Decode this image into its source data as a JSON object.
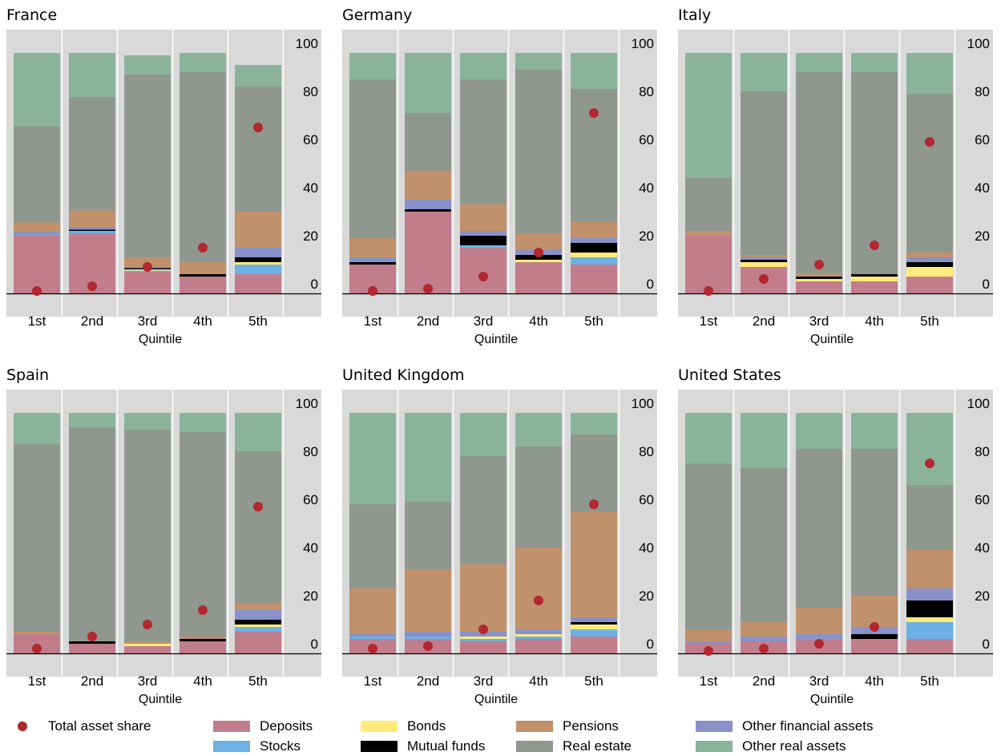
{
  "colors": {
    "deposits": "#c27d8c",
    "stocks": "#6cb0e4",
    "bonds": "#ffeb7a",
    "mutual": "#000000",
    "other_fin": "#8892c8",
    "pensions": "#c0916b",
    "real_estate": "#8f978f",
    "other_real": "#8bb39b",
    "dot": "#b2282e",
    "panel_bg": "#d9d9d9"
  },
  "legend": {
    "total": "Total asset share",
    "deposits": "Deposits",
    "stocks": "Stocks",
    "bonds": "Bonds",
    "mutual": "Mutual funds",
    "pensions": "Pensions",
    "real_estate": "Real estate",
    "other_fin": "Other financial assets",
    "other_real": "Other real assets"
  },
  "chart_data": [
    {
      "type": "bar",
      "title": "France",
      "xlabel": "Quintile",
      "categories": [
        "1st",
        "2nd",
        "3rd",
        "4th",
        "5th"
      ],
      "ylim": [
        0,
        100
      ],
      "yticks": [
        0,
        20,
        40,
        60,
        80,
        100
      ],
      "series": [
        {
          "name": "Deposits",
          "key": "deposits",
          "values": [
            24,
            25,
            9,
            7,
            8
          ]
        },
        {
          "name": "Stocks",
          "key": "stocks",
          "values": [
            0.5,
            1,
            0.5,
            0,
            4
          ]
        },
        {
          "name": "Bonds",
          "key": "bonds",
          "values": [
            0,
            0,
            0.5,
            0,
            1
          ]
        },
        {
          "name": "Mutual funds",
          "key": "mutual",
          "values": [
            0,
            0.5,
            0.5,
            1,
            2
          ]
        },
        {
          "name": "Other financial assets",
          "key": "other_fin",
          "values": [
            1,
            1,
            0.5,
            0,
            4
          ]
        },
        {
          "name": "Pensions",
          "key": "pensions",
          "values": [
            4,
            7,
            4,
            5,
            15
          ]
        },
        {
          "name": "Real estate",
          "key": "real_estate",
          "values": [
            40,
            47,
            76,
            79,
            52
          ]
        },
        {
          "name": "Other real assets",
          "key": "other_real",
          "values": [
            30.5,
            18.5,
            8,
            8,
            9
          ]
        }
      ],
      "total_asset_share": [
        1,
        3,
        11,
        19,
        69
      ]
    },
    {
      "type": "bar",
      "title": "Germany",
      "xlabel": "Quintile",
      "categories": [
        "1st",
        "2nd",
        "3rd",
        "4th",
        "5th"
      ],
      "ylim": [
        0,
        100
      ],
      "yticks": [
        0,
        20,
        40,
        60,
        80,
        100
      ],
      "series": [
        {
          "name": "Deposits",
          "key": "deposits",
          "values": [
            12,
            34,
            19,
            13,
            12
          ]
        },
        {
          "name": "Stocks",
          "key": "stocks",
          "values": [
            0,
            0,
            1,
            0,
            3
          ]
        },
        {
          "name": "Bonds",
          "key": "bonds",
          "values": [
            0,
            0,
            0,
            1,
            2
          ]
        },
        {
          "name": "Mutual funds",
          "key": "mutual",
          "values": [
            1,
            1,
            4,
            2,
            4
          ]
        },
        {
          "name": "Other financial assets",
          "key": "other_fin",
          "values": [
            2,
            4,
            2,
            2,
            2
          ]
        },
        {
          "name": "Pensions",
          "key": "pensions",
          "values": [
            8,
            12,
            11,
            7,
            7
          ]
        },
        {
          "name": "Real estate",
          "key": "real_estate",
          "values": [
            66,
            24,
            52,
            68,
            55
          ]
        },
        {
          "name": "Other real assets",
          "key": "other_real",
          "values": [
            11,
            25,
            11,
            7,
            15
          ]
        }
      ],
      "total_asset_share": [
        1,
        2,
        7,
        17,
        75
      ]
    },
    {
      "type": "bar",
      "title": "Italy",
      "xlabel": "Quintile",
      "categories": [
        "1st",
        "2nd",
        "3rd",
        "4th",
        "5th"
      ],
      "ylim": [
        0,
        100
      ],
      "yticks": [
        0,
        20,
        40,
        60,
        80,
        100
      ],
      "series": [
        {
          "name": "Deposits",
          "key": "deposits",
          "values": [
            24,
            11,
            5,
            5,
            7
          ]
        },
        {
          "name": "Stocks",
          "key": "stocks",
          "values": [
            0,
            0,
            0,
            0,
            0
          ]
        },
        {
          "name": "Bonds",
          "key": "bonds",
          "values": [
            0,
            2,
            1,
            2,
            4
          ]
        },
        {
          "name": "Mutual funds",
          "key": "mutual",
          "values": [
            0,
            1,
            1,
            1,
            2
          ]
        },
        {
          "name": "Other financial assets",
          "key": "other_fin",
          "values": [
            0,
            1,
            0,
            0,
            2
          ]
        },
        {
          "name": "Pensions",
          "key": "pensions",
          "values": [
            2,
            1,
            1,
            0,
            2
          ]
        },
        {
          "name": "Real estate",
          "key": "real_estate",
          "values": [
            22,
            68,
            84,
            84,
            66
          ]
        },
        {
          "name": "Other real assets",
          "key": "other_real",
          "values": [
            52,
            16,
            8,
            8,
            17
          ]
        }
      ],
      "total_asset_share": [
        1,
        6,
        12,
        20,
        63
      ]
    },
    {
      "type": "bar",
      "title": "Spain",
      "xlabel": "Quintile",
      "categories": [
        "1st",
        "2nd",
        "3rd",
        "4th",
        "5th"
      ],
      "ylim": [
        0,
        100
      ],
      "yticks": [
        0,
        20,
        40,
        60,
        80,
        100
      ],
      "series": [
        {
          "name": "Deposits",
          "key": "deposits",
          "values": [
            8,
            4,
            3,
            5,
            9
          ]
        },
        {
          "name": "Stocks",
          "key": "stocks",
          "values": [
            0,
            0,
            0,
            0,
            2
          ]
        },
        {
          "name": "Bonds",
          "key": "bonds",
          "values": [
            0,
            0,
            1,
            0,
            1
          ]
        },
        {
          "name": "Mutual funds",
          "key": "mutual",
          "values": [
            0,
            1,
            0,
            1,
            2
          ]
        },
        {
          "name": "Other financial assets",
          "key": "other_fin",
          "values": [
            0,
            0,
            0,
            0,
            4
          ]
        },
        {
          "name": "Pensions",
          "key": "pensions",
          "values": [
            1,
            0,
            1,
            1,
            3
          ]
        },
        {
          "name": "Real estate",
          "key": "real_estate",
          "values": [
            78,
            89,
            88,
            85,
            63
          ]
        },
        {
          "name": "Other real assets",
          "key": "other_real",
          "values": [
            13,
            6,
            7,
            8,
            16
          ]
        }
      ],
      "total_asset_share": [
        2,
        7,
        12,
        18,
        61
      ]
    },
    {
      "type": "bar",
      "title": "United Kingdom",
      "xlabel": "Quintile",
      "categories": [
        "1st",
        "2nd",
        "3rd",
        "4th",
        "5th"
      ],
      "ylim": [
        0,
        100
      ],
      "yticks": [
        0,
        20,
        40,
        60,
        80,
        100
      ],
      "series": [
        {
          "name": "Deposits",
          "key": "deposits",
          "values": [
            6,
            6,
            5,
            6,
            7
          ]
        },
        {
          "name": "Stocks",
          "key": "stocks",
          "values": [
            1,
            1,
            1,
            1,
            3
          ]
        },
        {
          "name": "Bonds",
          "key": "bonds",
          "values": [
            0,
            0,
            1,
            1,
            2
          ]
        },
        {
          "name": "Mutual funds",
          "key": "mutual",
          "values": [
            0,
            0,
            0,
            0,
            1
          ]
        },
        {
          "name": "Other financial assets",
          "key": "other_fin",
          "values": [
            1,
            2,
            2,
            2,
            2
          ]
        },
        {
          "name": "Pensions",
          "key": "pensions",
          "values": [
            19,
            26,
            28,
            34,
            44
          ]
        },
        {
          "name": "Real estate",
          "key": "real_estate",
          "values": [
            35,
            28,
            45,
            42,
            32
          ]
        },
        {
          "name": "Other real assets",
          "key": "other_real",
          "values": [
            38,
            37,
            18,
            14,
            9
          ]
        }
      ],
      "total_asset_share": [
        2,
        3,
        10,
        22,
        62
      ]
    },
    {
      "type": "bar",
      "title": "United States",
      "xlabel": "Quintile",
      "categories": [
        "1st",
        "2nd",
        "3rd",
        "4th",
        "5th"
      ],
      "ylim": [
        0,
        100
      ],
      "yticks": [
        0,
        20,
        40,
        60,
        80,
        100
      ],
      "series": [
        {
          "name": "Deposits",
          "key": "deposits",
          "values": [
            4,
            5,
            6,
            6,
            6
          ]
        },
        {
          "name": "Stocks",
          "key": "stocks",
          "values": [
            0,
            0,
            0,
            0,
            7
          ]
        },
        {
          "name": "Bonds",
          "key": "bonds",
          "values": [
            0,
            0,
            0,
            0,
            2
          ]
        },
        {
          "name": "Mutual funds",
          "key": "mutual",
          "values": [
            0,
            0,
            0,
            2,
            7
          ]
        },
        {
          "name": "Other financial assets",
          "key": "other_fin",
          "values": [
            1,
            2,
            2,
            3,
            5
          ]
        },
        {
          "name": "Pensions",
          "key": "pensions",
          "values": [
            5,
            6,
            11,
            13,
            16
          ]
        },
        {
          "name": "Real estate",
          "key": "real_estate",
          "values": [
            69,
            64,
            66,
            61,
            27
          ]
        },
        {
          "name": "Other real assets",
          "key": "other_real",
          "values": [
            21,
            23,
            15,
            15,
            30
          ]
        }
      ],
      "total_asset_share": [
        1,
        2,
        4,
        11,
        79
      ]
    }
  ]
}
